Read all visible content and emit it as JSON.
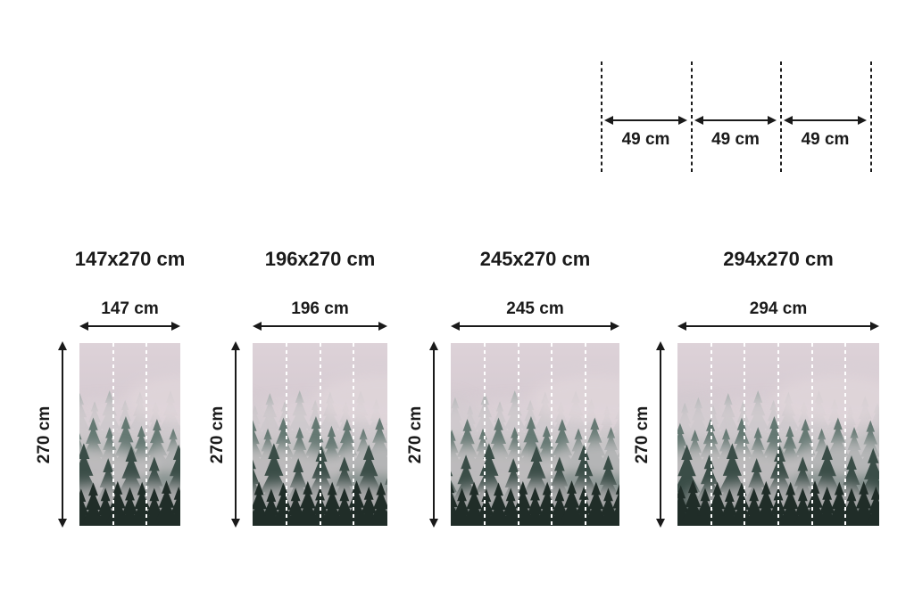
{
  "page": {
    "background": "#ffffff",
    "text_color": "#1a1a1a",
    "description": "Wallpaper mural size chart with panel width diagram"
  },
  "panel_diagram": {
    "segments": [
      {
        "label": "49 cm"
      },
      {
        "label": "49 cm"
      },
      {
        "label": "49 cm"
      }
    ]
  },
  "sizes": [
    {
      "title": "147x270 cm",
      "width_label": "147 cm",
      "height_label": "270 cm",
      "width_cm": 147,
      "height_cm": 270,
      "panel_count": 3
    },
    {
      "title": "196x270 cm",
      "width_label": "196 cm",
      "height_label": "270 cm",
      "width_cm": 196,
      "height_cm": 270,
      "panel_count": 4
    },
    {
      "title": "245x270 cm",
      "width_label": "245 cm",
      "height_label": "270 cm",
      "width_cm": 245,
      "height_cm": 270,
      "panel_count": 5
    },
    {
      "title": "294x270 cm",
      "width_label": "294 cm",
      "height_label": "270 cm",
      "width_cm": 294,
      "height_cm": 270,
      "panel_count": 6
    }
  ],
  "artwork": {
    "description": "foggy pine forest mural preview",
    "panel_divider_color": "#ffffff",
    "colors": {
      "sky": "#d9cdd3",
      "fog": "#d8cfd4",
      "far_trees": "#8fa09b",
      "mid_trees": "#5d726c",
      "near_trees": "#3a4d47",
      "front_trees": "#202d28"
    }
  }
}
